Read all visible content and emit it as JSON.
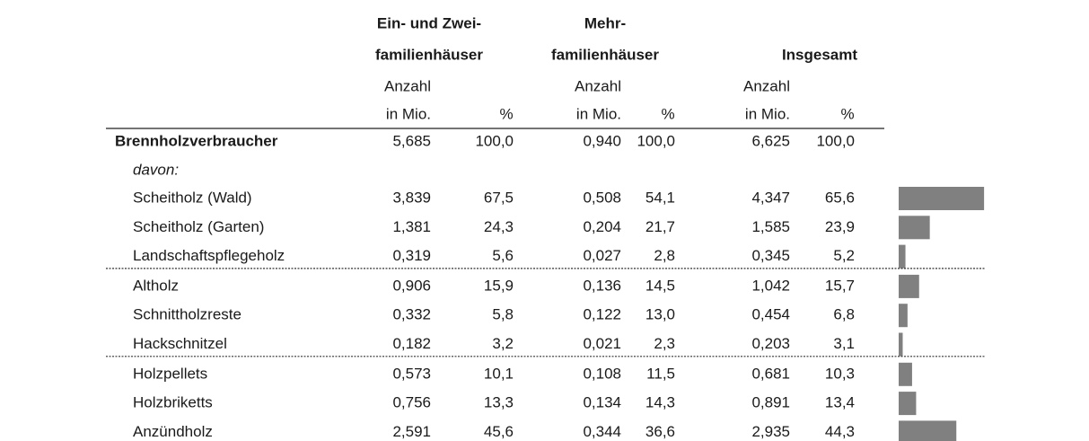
{
  "table": {
    "header": {
      "groups": [
        {
          "title": [
            "Ein- und Zwei-",
            "familienhäuser"
          ],
          "units": [
            [
              "Anzahl",
              "in Mio."
            ],
            [
              "%"
            ]
          ]
        },
        {
          "title": [
            "Mehr-",
            "familienhäuser"
          ],
          "units": [
            [
              "Anzahl",
              "in Mio."
            ],
            [
              "%"
            ]
          ]
        },
        {
          "title": [
            "Insgesamt"
          ],
          "units": [
            [
              "Anzahl",
              "in Mio."
            ],
            [
              "%"
            ]
          ]
        }
      ]
    },
    "total": {
      "label": "Brennholzverbraucher",
      "cells": [
        "5,685",
        "100,0",
        "0,940",
        "100,0",
        "6,625",
        "100,0"
      ]
    },
    "note": "davon:",
    "groups": [
      [
        {
          "label": "Scheitholz (Wald)",
          "cells": [
            "3,839",
            "67,5",
            "0,508",
            "54,1",
            "4,347",
            "65,6"
          ]
        },
        {
          "label": "Scheitholz (Garten)",
          "cells": [
            "1,381",
            "24,3",
            "0,204",
            "21,7",
            "1,585",
            "23,9"
          ]
        },
        {
          "label": "Landschaftspflegeholz",
          "cells": [
            "0,319",
            "5,6",
            "0,027",
            "2,8",
            "0,345",
            "5,2"
          ]
        }
      ],
      [
        {
          "label": "Altholz",
          "cells": [
            "0,906",
            "15,9",
            "0,136",
            "14,5",
            "1,042",
            "15,7"
          ]
        },
        {
          "label": "Schnittholzreste",
          "cells": [
            "0,332",
            "5,8",
            "0,122",
            "13,0",
            "0,454",
            "6,8"
          ]
        },
        {
          "label": "Hackschnitzel",
          "cells": [
            "0,182",
            "3,2",
            "0,021",
            "2,3",
            "0,203",
            "3,1"
          ]
        }
      ],
      [
        {
          "label": "Holzpellets",
          "cells": [
            "0,573",
            "10,1",
            "0,108",
            "11,5",
            "0,681",
            "10,3"
          ]
        },
        {
          "label": "Holzbriketts",
          "cells": [
            "0,756",
            "13,3",
            "0,134",
            "14,3",
            "0,891",
            "13,4"
          ]
        },
        {
          "label": "Anzündholz",
          "cells": [
            "2,591",
            "45,6",
            "0,344",
            "36,6",
            "2,935",
            "44,3"
          ]
        }
      ]
    ]
  }
}
